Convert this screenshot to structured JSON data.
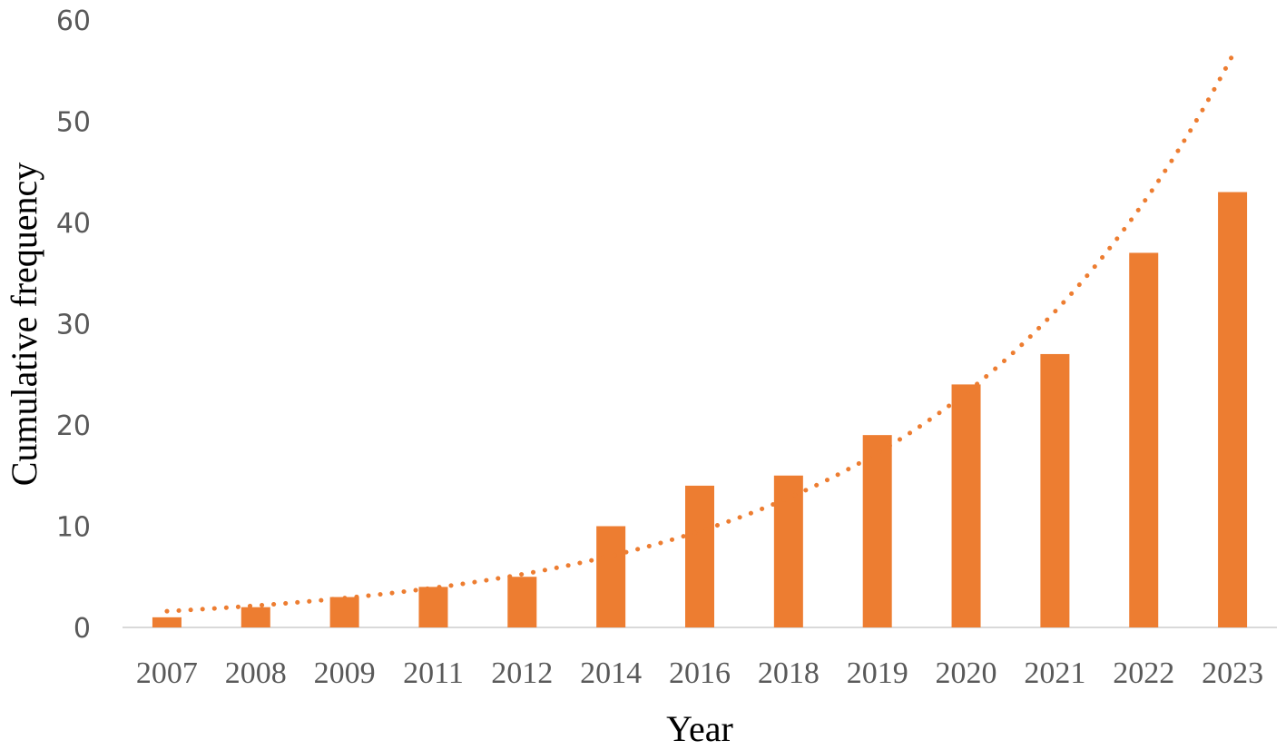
{
  "chart_data": {
    "type": "bar",
    "categories": [
      "2007",
      "2008",
      "2009",
      "2011",
      "2012",
      "2014",
      "2016",
      "2018",
      "2019",
      "2020",
      "2021",
      "2022",
      "2023"
    ],
    "values": [
      1,
      2,
      3,
      4,
      5,
      10,
      14,
      15,
      19,
      24,
      27,
      37,
      43
    ],
    "xlabel": "Year",
    "ylabel": "Cumulative frequency",
    "ylim": [
      0,
      60
    ],
    "yticks": [
      0,
      10,
      20,
      30,
      40,
      50,
      60
    ],
    "grid": false,
    "bar_color": "#ED7D31",
    "trendline": {
      "type": "exponential",
      "style": "dotted",
      "color": "#ED7D31",
      "start": 1.6,
      "end": 56.5
    }
  }
}
